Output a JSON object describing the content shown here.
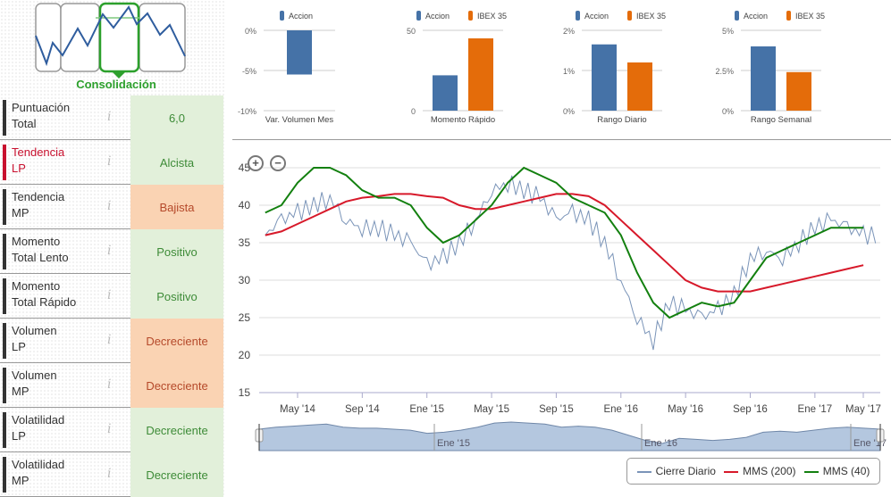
{
  "phase": {
    "label": "Consolidación"
  },
  "indicators": [
    {
      "label1": "Puntuación",
      "label2": "Total",
      "value": "6,0",
      "tone": "pos",
      "highlight": false
    },
    {
      "label1": "Tendencia",
      "label2": "LP",
      "value": "Alcista",
      "tone": "pos",
      "highlight": true
    },
    {
      "label1": "Tendencia",
      "label2": "MP",
      "value": "Bajista",
      "tone": "neg",
      "highlight": false
    },
    {
      "label1": "Momento",
      "label2": "Total Lento",
      "value": "Positivo",
      "tone": "pos",
      "highlight": false
    },
    {
      "label1": "Momento",
      "label2": "Total Rápido",
      "value": "Positivo",
      "tone": "pos",
      "highlight": false
    },
    {
      "label1": "Volumen",
      "label2": "LP",
      "value": "Decreciente",
      "tone": "neg",
      "highlight": false
    },
    {
      "label1": "Volumen",
      "label2": "MP",
      "value": "Decreciente",
      "tone": "neg",
      "highlight": false
    },
    {
      "label1": "Volatilidad",
      "label2": "LP",
      "value": "Decreciente",
      "tone": "pos",
      "highlight": false
    },
    {
      "label1": "Volatilidad",
      "label2": "MP",
      "value": "Decreciente",
      "tone": "pos",
      "highlight": false
    }
  ],
  "info_icon": "i",
  "colors": {
    "accion": "#4572a7",
    "ibex": "#e46c0a",
    "cierre": "#7a94b8",
    "mms200": "#d7192a",
    "mms40": "#13800f"
  },
  "zoom": {
    "in": "+",
    "out": "−"
  },
  "legend": {
    "cierre": "Cierre Diario",
    "mms200": "MMS (200)",
    "mms40": "MMS (40)"
  },
  "navigator": {
    "labels": [
      "Ene '15",
      "Ene '16",
      "Ene '17"
    ]
  },
  "chart_data": [
    {
      "type": "bar",
      "title": "Var. Volumen Mes",
      "series": [
        {
          "name": "Accion",
          "values": [
            -5.5
          ]
        }
      ],
      "ylim": [
        -10,
        0
      ],
      "yticks": [
        "0%",
        "-5%",
        "-10%"
      ],
      "ytick_values": [
        0,
        -5,
        -10
      ]
    },
    {
      "type": "bar",
      "title": "Momento Rápido",
      "series": [
        {
          "name": "Accion",
          "values": [
            22
          ]
        },
        {
          "name": "IBEX 35",
          "values": [
            45
          ]
        }
      ],
      "ylim": [
        0,
        50
      ],
      "yticks": [
        "50",
        "0"
      ],
      "ytick_values": [
        50,
        0
      ]
    },
    {
      "type": "bar",
      "title": "Rango Diario",
      "series": [
        {
          "name": "Accion",
          "values": [
            1.65
          ]
        },
        {
          "name": "IBEX 35",
          "values": [
            1.2
          ]
        }
      ],
      "ylim": [
        0,
        2
      ],
      "yticks": [
        "2%",
        "1%",
        "0%"
      ],
      "ytick_values": [
        2,
        1,
        0
      ]
    },
    {
      "type": "bar",
      "title": "Rango Semanal",
      "series": [
        {
          "name": "Accion",
          "values": [
            4.0
          ]
        },
        {
          "name": "IBEX 35",
          "values": [
            2.4
          ]
        }
      ],
      "ylim": [
        0,
        5
      ],
      "yticks": [
        "5%",
        "2.5%",
        "0%"
      ],
      "ytick_values": [
        5,
        2.5,
        0
      ]
    },
    {
      "type": "line",
      "title": "",
      "ylim": [
        15,
        45
      ],
      "yticks": [
        "45",
        "40",
        "35",
        "30",
        "25",
        "20",
        "15"
      ],
      "ytick_values": [
        45,
        40,
        35,
        30,
        25,
        20,
        15
      ],
      "xticks": [
        "May '14",
        "Sep '14",
        "Ene '15",
        "May '15",
        "Sep '15",
        "Ene '16",
        "May '16",
        "Sep '16",
        "Ene '17",
        "May '17"
      ],
      "xtick_months": [
        2,
        6,
        10,
        14,
        18,
        22,
        26,
        30,
        34,
        38
      ],
      "x_start": "Mar 2014",
      "x_unit": "month",
      "series": [
        {
          "name": "Cierre Diario",
          "values": [
            36,
            38,
            39,
            40,
            41,
            38,
            37,
            37,
            36,
            35,
            32,
            33,
            35,
            38,
            42,
            43,
            42,
            41,
            38,
            39,
            38,
            35,
            30,
            25,
            22,
            27,
            26,
            25,
            26,
            28,
            33,
            34,
            33,
            35,
            37,
            38,
            37,
            36
          ]
        },
        {
          "name": "MMS (200)",
          "values": [
            36,
            36.5,
            37.5,
            38.5,
            39.5,
            40.5,
            41,
            41.2,
            41.5,
            41.5,
            41.2,
            41,
            40,
            39.5,
            39.5,
            40,
            40.5,
            41,
            41.5,
            41.5,
            41.2,
            40,
            38,
            36,
            34,
            32,
            30,
            29,
            28.5,
            28.5,
            28.5,
            29,
            29.5,
            30,
            30.5,
            31,
            31.5,
            32
          ]
        },
        {
          "name": "MMS (40)",
          "values": [
            39,
            40,
            43,
            45,
            45,
            44,
            42,
            41,
            41,
            40,
            37,
            35,
            36,
            38,
            40,
            43,
            45,
            44,
            43,
            41,
            40,
            39,
            36,
            31,
            27,
            25,
            26,
            27,
            26.5,
            27,
            30,
            33,
            34,
            35,
            36,
            37,
            37,
            37
          ]
        }
      ]
    }
  ]
}
